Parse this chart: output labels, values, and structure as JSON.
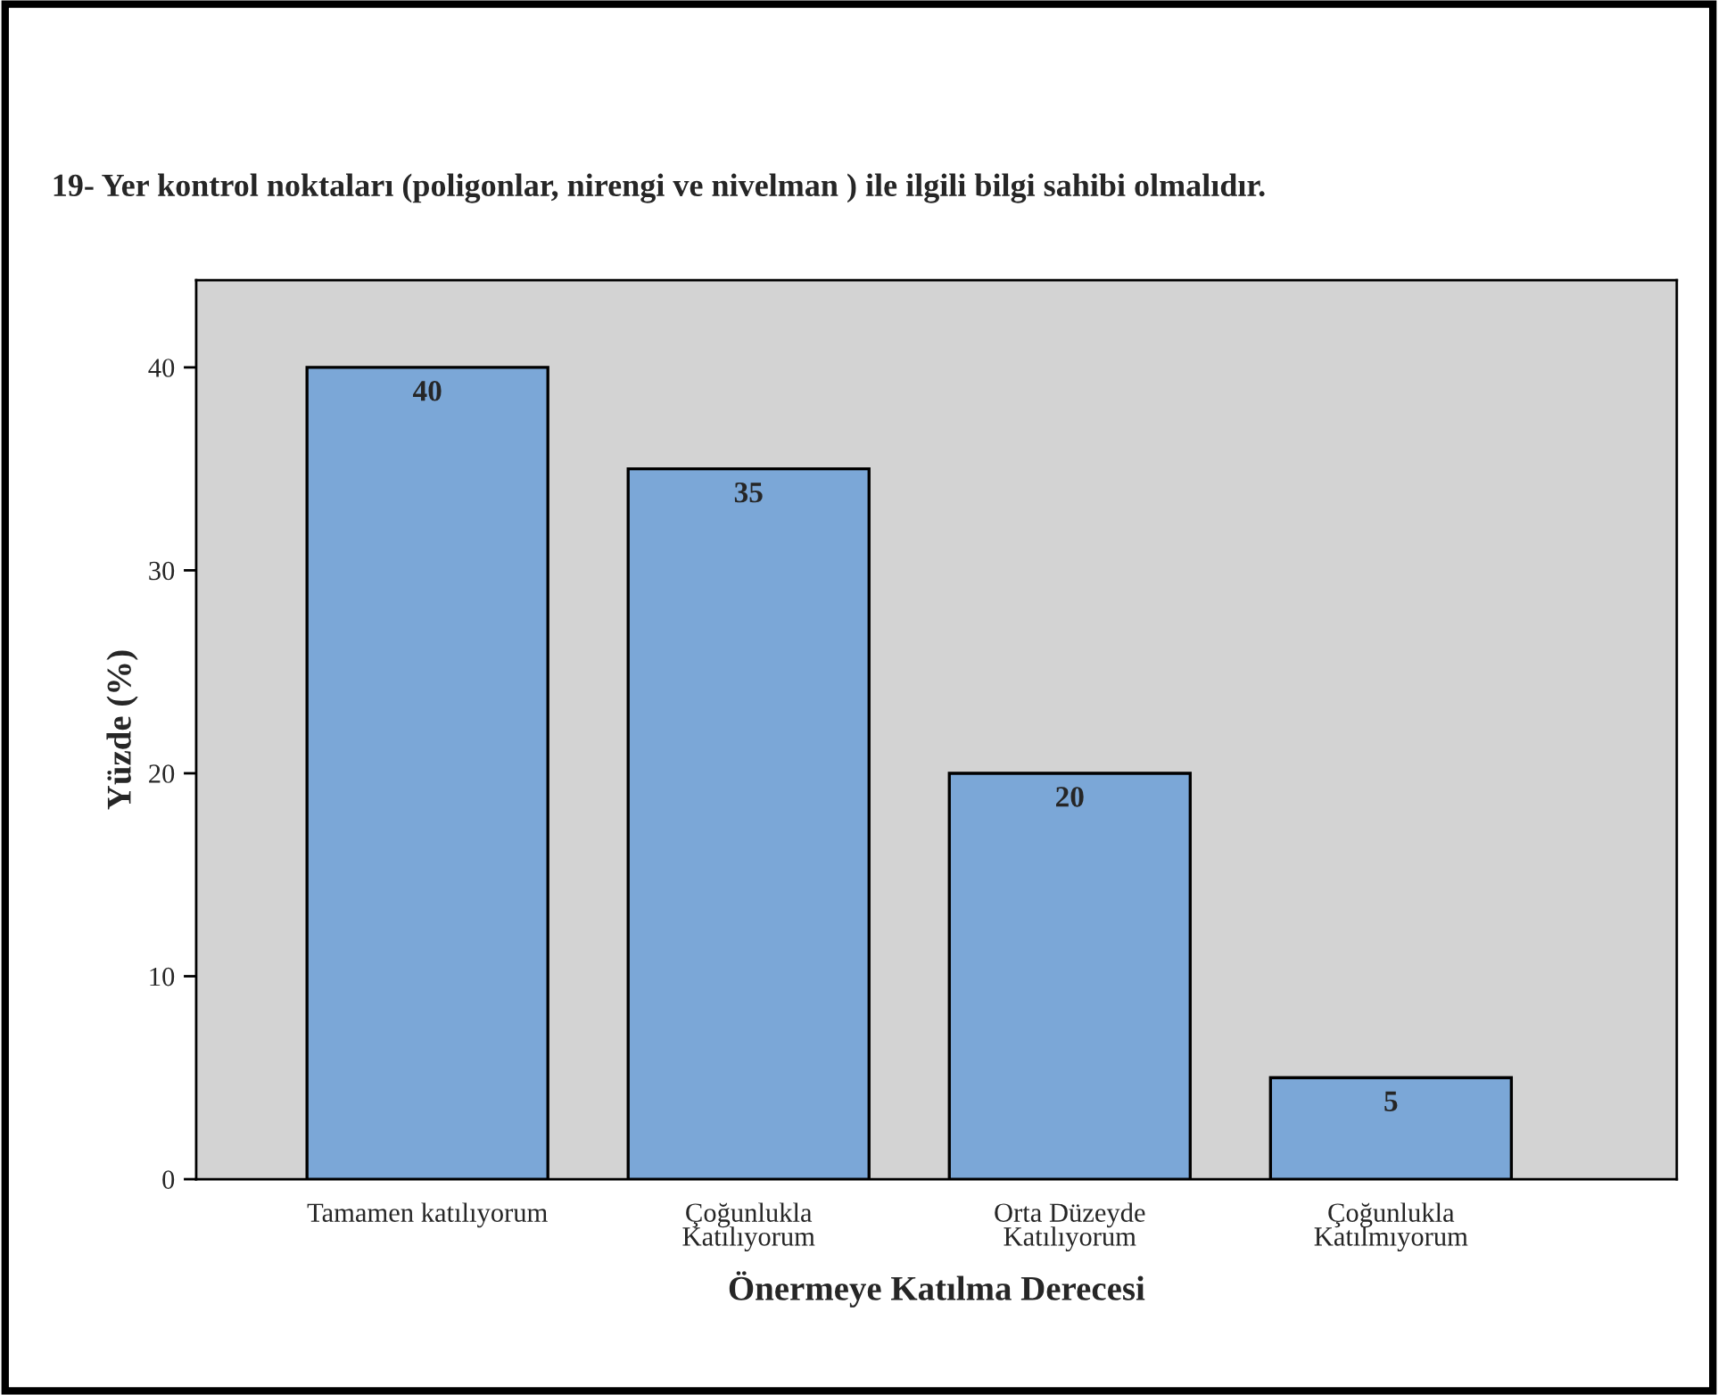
{
  "chart_data": {
    "type": "bar",
    "title": "19- Yer kontrol noktaları (poligonlar, nirengi ve nivelman ) ile ilgili bilgi sahibi olmalıdır.",
    "xlabel": "Önermeye Katılma Derecesi",
    "ylabel": "Yüzde (%)",
    "categories": [
      "Tamamen katılıyorum",
      "Çoğunlukla\nKatılıyorum",
      "Orta Düzeyde\nKatılıyorum",
      "Çoğunlukla\nKatılmıyorum"
    ],
    "values": [
      40,
      35,
      20,
      5
    ],
    "color": "#7ba7d7",
    "ylim": [
      0,
      44.3
    ],
    "yticks": [
      0,
      10,
      20,
      30,
      40
    ],
    "data_labels": true,
    "grid": false,
    "legend": false
  }
}
